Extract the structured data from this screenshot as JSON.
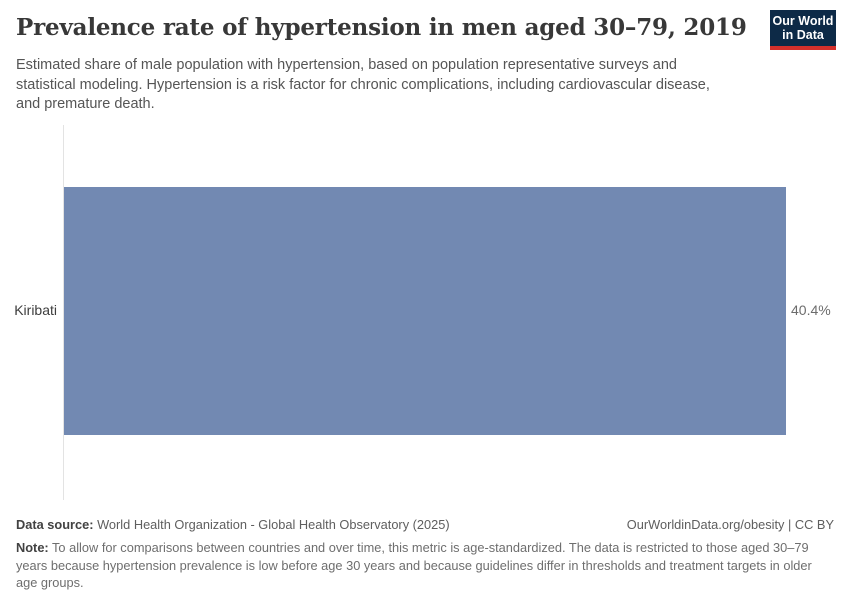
{
  "header": {
    "title": "Prevalence rate of hypertension in men aged 30–79, 2019",
    "subtitle": "Estimated share of male population with hypertension, based on population representative surveys and statistical modeling. Hypertension is a risk factor for chronic complications, including cardiovascular disease, and premature death.",
    "logo": {
      "line1": "Our World",
      "line2": "in Data",
      "bg_color": "#0d2a47",
      "accent_color": "#d4302b"
    }
  },
  "chart_data": {
    "type": "bar",
    "orientation": "horizontal",
    "categories": [
      "Kiribati"
    ],
    "values": [
      40.4
    ],
    "value_labels": [
      "40.4%"
    ],
    "title": "Prevalence rate of hypertension in men aged 30–79, 2019",
    "xlabel": "",
    "ylabel": "",
    "xlim": [
      0,
      40.4
    ],
    "grid": false,
    "legend": false,
    "bar_color": "#7289b2",
    "axis_color": "#e3e3e3"
  },
  "footer": {
    "datasource_label": "Data source:",
    "datasource_text": " World Health Organization - Global Health Observatory (2025)",
    "attribution": "OurWorldinData.org/obesity | CC BY",
    "note_label": "Note:",
    "note_text": " To allow for comparisons between countries and over time, this metric is age-standardized. The data is restricted to those aged 30–79 years because hypertension prevalence is low before age 30 years and because guidelines differ in thresholds and treatment targets in older age groups."
  }
}
